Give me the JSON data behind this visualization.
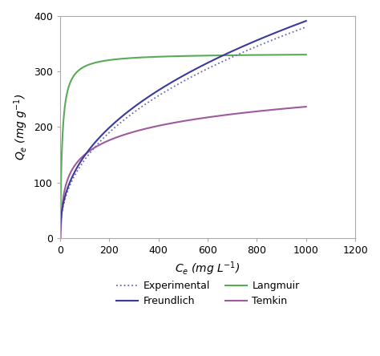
{
  "title": "",
  "xlabel": "C_e (mg L⁻¹)",
  "ylabel": "Q_e (mg g⁻¹)",
  "xlim": [
    0,
    1200
  ],
  "ylim": [
    0,
    400
  ],
  "xticks": [
    0,
    200,
    400,
    600,
    800,
    1000,
    1200
  ],
  "yticks": [
    0,
    100,
    200,
    300,
    400
  ],
  "langmuir": {
    "qmax": 333.0,
    "KL": 0.13,
    "color": "#5aaa5a",
    "label": "Langmuir",
    "lw": 1.5
  },
  "freundlich": {
    "KF": 21.5,
    "n": 0.42,
    "color": "#3a3a9e",
    "label": "Freundlich",
    "lw": 1.5
  },
  "temkin": {
    "AT": 0.55,
    "B": 37.5,
    "color": "#9e5a9e",
    "label": "Temkin",
    "lw": 1.5
  },
  "experimental": {
    "KF": 19.5,
    "n": 0.43,
    "color": "#6868b8",
    "label": "Experimental",
    "lw": 1.3,
    "linestyle": "dotted"
  },
  "figsize": [
    4.74,
    4.44
  ],
  "dpi": 100,
  "bg_color": "#ffffff",
  "legend_fontsize": 9,
  "axis_fontsize": 10,
  "tick_fontsize": 9,
  "spine_color": "#aaaaaa",
  "spine_lw": 0.8
}
